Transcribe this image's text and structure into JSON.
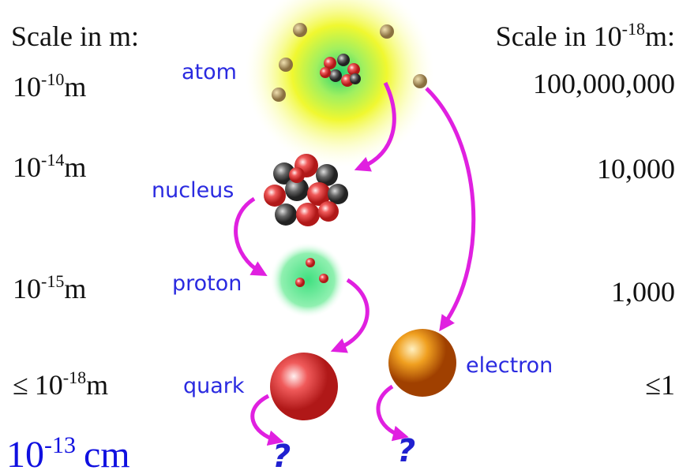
{
  "header": {
    "left": "Scale in m:",
    "right": {
      "base": "Scale in 10",
      "sup": "-18",
      "unit": "m:"
    }
  },
  "rows": [
    {
      "left": {
        "base": "10",
        "sup": "-10",
        "unit": "m"
      },
      "label": "atom",
      "right": "100,000,000"
    },
    {
      "left": {
        "base": "10",
        "sup": "-14",
        "unit": "m"
      },
      "label": "nucleus",
      "right": "10,000"
    },
    {
      "left": {
        "base": "10",
        "sup": "-15",
        "unit": "m"
      },
      "label": "proton",
      "right": "1,000"
    },
    {
      "left": {
        "prefix": "≤",
        "base": "10",
        "sup": "-18",
        "unit": "m"
      },
      "label": "quark",
      "right": "≤1"
    }
  ],
  "electron": "electron",
  "unknown": [
    "?",
    "?"
  ],
  "footer": {
    "base": "10",
    "sup": "-13",
    "unit": "cm"
  }
}
